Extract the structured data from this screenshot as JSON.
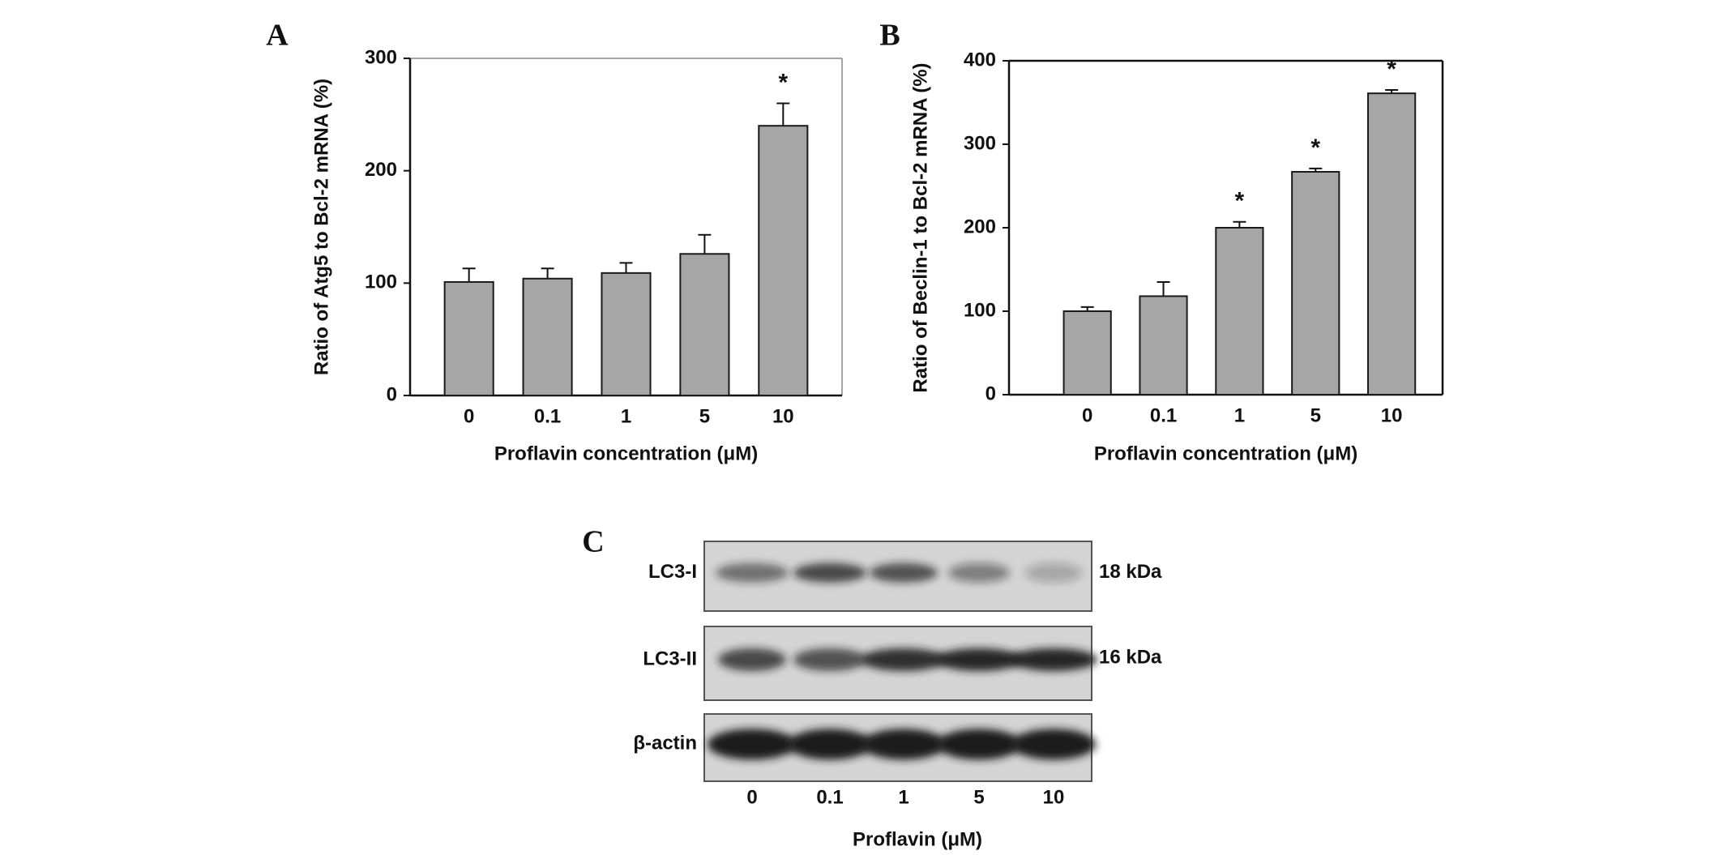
{
  "chart_data": [
    {
      "type": "bar",
      "panel_label": "A",
      "ylabel": "Ratio of Atg5 to Bcl-2 mRNA (%)",
      "xlabel": "Proflavin concentration (μM)",
      "categories": [
        "0",
        "0.1",
        "1",
        "5",
        "10"
      ],
      "values": [
        101,
        104,
        109,
        126,
        240
      ],
      "errors": [
        12,
        9,
        9,
        17,
        20
      ],
      "color": "#a6a6a6",
      "ylim": [
        0,
        300
      ],
      "yticks": [
        0,
        100,
        200,
        300
      ],
      "annotations": [
        {
          "x": "10",
          "text": "*"
        }
      ]
    },
    {
      "type": "bar",
      "panel_label": "B",
      "ylabel": "Ratio of Beclin-1 to Bcl-2 mRNA (%)",
      "xlabel": "Proflavin concentration (μM)",
      "categories": [
        "0",
        "0.1",
        "1",
        "5",
        "10"
      ],
      "values": [
        100,
        118,
        200,
        267,
        361
      ],
      "errors": [
        5,
        17,
        7,
        4,
        4
      ],
      "color": "#a6a6a6",
      "ylim": [
        0,
        400
      ],
      "yticks": [
        0,
        100,
        200,
        300,
        400
      ],
      "annotations": [
        {
          "x": "1",
          "text": "*"
        },
        {
          "x": "5",
          "text": "*"
        },
        {
          "x": "10",
          "text": "*"
        }
      ]
    }
  ],
  "blot": {
    "panel_label": "C",
    "rows": [
      {
        "label": "LC3-I",
        "size": "18 kDa"
      },
      {
        "label": "LC3-II",
        "size": "16 kDa"
      },
      {
        "label": "β-actin"
      }
    ],
    "lanes": [
      "0",
      "0.1",
      "1",
      "5",
      "10"
    ],
    "xlabel": "Proflavin (μM)"
  }
}
